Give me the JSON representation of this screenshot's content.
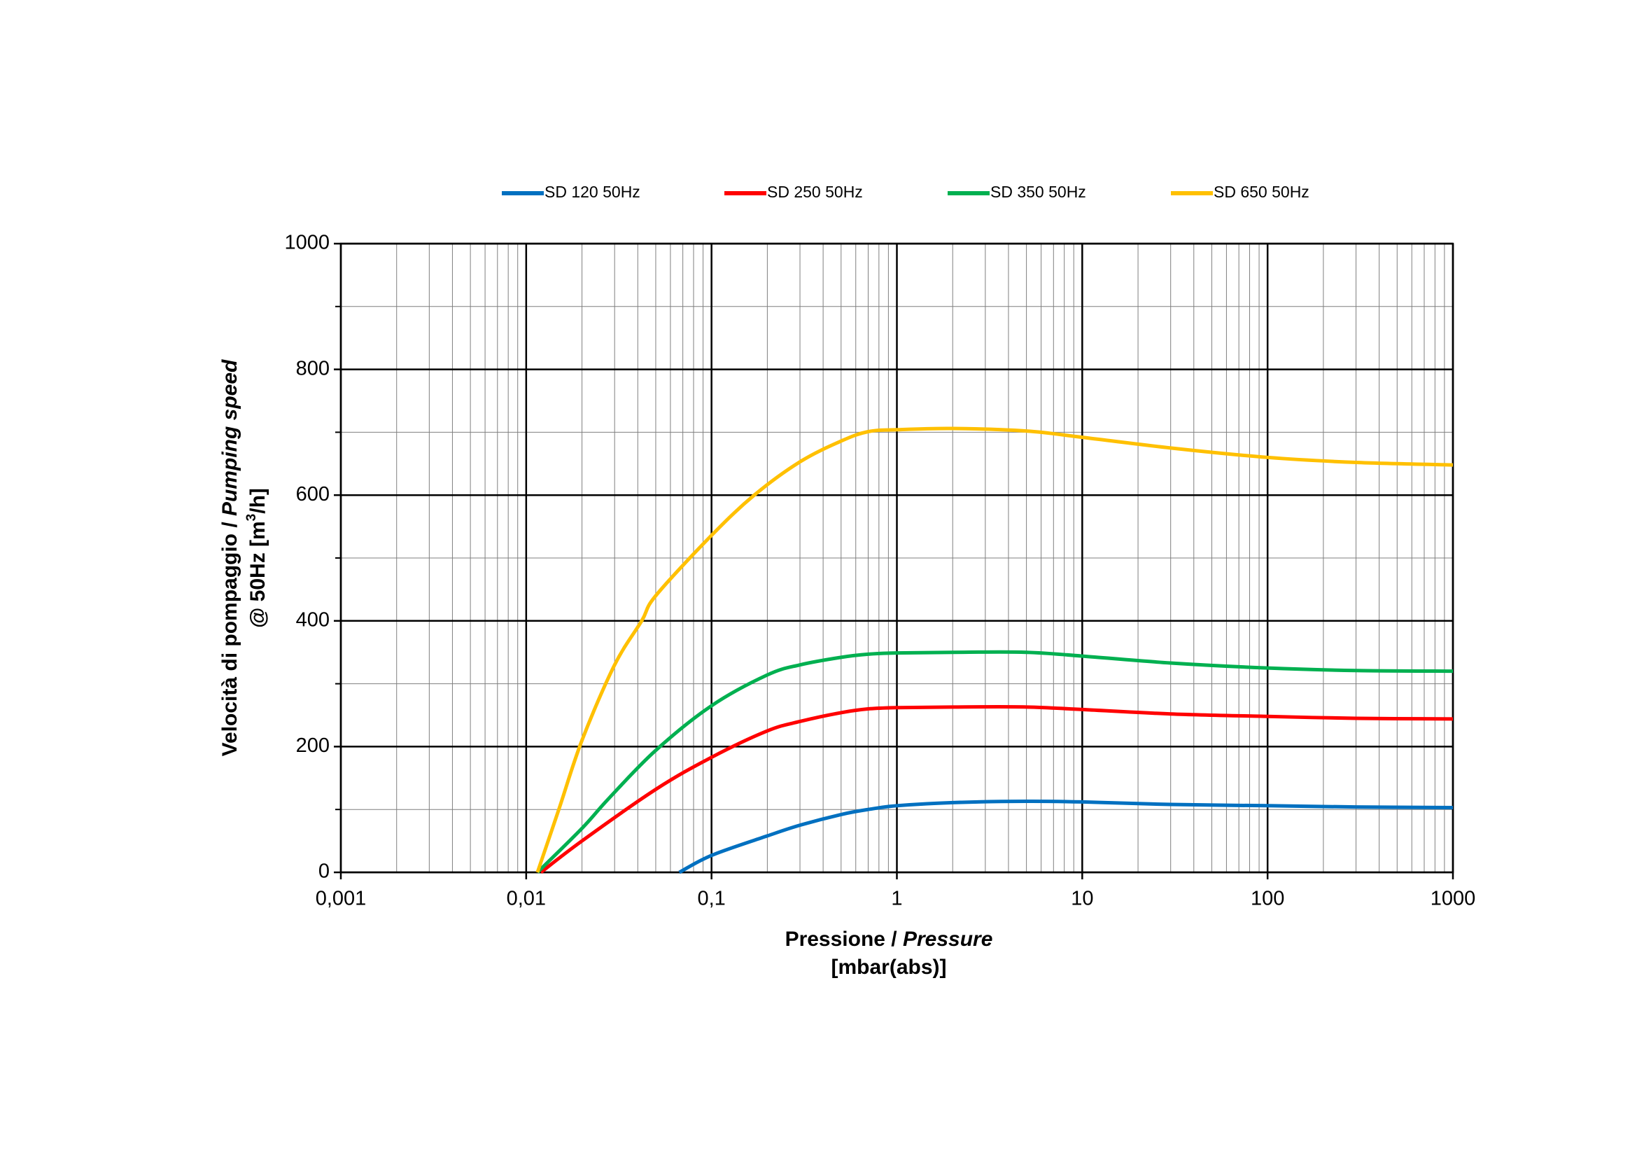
{
  "chart_data": {
    "type": "line",
    "xlabel": [
      "Pressione / ",
      "Pressure",
      "[mbar(abs)]"
    ],
    "ylabel": [
      [
        "Velocità di pompaggio / ",
        "Pumping speed"
      ],
      [
        "@ 50Hz [m",
        "3",
        "/h]"
      ]
    ],
    "xscale": "log",
    "xlim": [
      0.001,
      1000
    ],
    "xticks": [
      {
        "value": 0.001,
        "label": "0,001"
      },
      {
        "value": 0.01,
        "label": "0,01"
      },
      {
        "value": 0.1,
        "label": "0,1"
      },
      1,
      10,
      100,
      1000
    ],
    "xminorticks": [
      0.002,
      0.003,
      0.004,
      0.005,
      0.006,
      0.007,
      0.008,
      0.009,
      0.02,
      0.03,
      0.04,
      0.05,
      0.06,
      0.07,
      0.08,
      0.09,
      0.2,
      0.3,
      0.4,
      0.5,
      0.6,
      0.7,
      0.8,
      0.9,
      2,
      3,
      4,
      5,
      6,
      7,
      8,
      9,
      20,
      30,
      40,
      50,
      60,
      70,
      80,
      90,
      200,
      300,
      400,
      500,
      600,
      700,
      800,
      900
    ],
    "ylim": [
      0,
      1000
    ],
    "yticks": [
      0,
      200,
      400,
      600,
      800,
      1000
    ],
    "yminorticks": [
      100,
      300,
      500,
      700,
      900
    ],
    "grid": true,
    "legend": "top",
    "series": [
      {
        "name": "SD 120 50Hz",
        "color": "#0070C0",
        "x": [
          0.067,
          0.1,
          0.2,
          0.3,
          0.5,
          0.7,
          1,
          2,
          5,
          10,
          30,
          100,
          300,
          1000
        ],
        "values": [
          0,
          27,
          58,
          75,
          92,
          100,
          106,
          111,
          113,
          112,
          108,
          106,
          104,
          103
        ]
      },
      {
        "name": "SD 250 50Hz",
        "color": "#FF0000",
        "x": [
          0.012,
          0.02,
          0.05,
          0.1,
          0.2,
          0.3,
          0.5,
          0.7,
          1,
          2,
          5,
          10,
          30,
          100,
          300,
          1000
        ],
        "values": [
          0,
          50,
          132,
          183,
          225,
          240,
          254,
          260,
          262,
          263,
          263,
          259,
          252,
          248,
          245,
          244
        ]
      },
      {
        "name": "SD 350 50Hz",
        "color": "#00B050",
        "x": [
          0.0115,
          0.02,
          0.028,
          0.05,
          0.1,
          0.2,
          0.3,
          0.5,
          0.7,
          1,
          2,
          5,
          10,
          30,
          100,
          300,
          1000
        ],
        "values": [
          0,
          70,
          118,
          194,
          265,
          314,
          330,
          342,
          347,
          349,
          350,
          350,
          344,
          333,
          325,
          321,
          320
        ]
      },
      {
        "name": "SD 650 50Hz",
        "color": "#FFC000",
        "x": [
          0.0115,
          0.015,
          0.02,
          0.03,
          0.042,
          0.05,
          0.1,
          0.17,
          0.3,
          0.5,
          0.7,
          1,
          2,
          5,
          10,
          30,
          100,
          300,
          1000
        ],
        "values": [
          0,
          100,
          210,
          330,
          400,
          440,
          536,
          600,
          653,
          686,
          701,
          704,
          706,
          702,
          692,
          675,
          660,
          652,
          648
        ]
      }
    ]
  }
}
